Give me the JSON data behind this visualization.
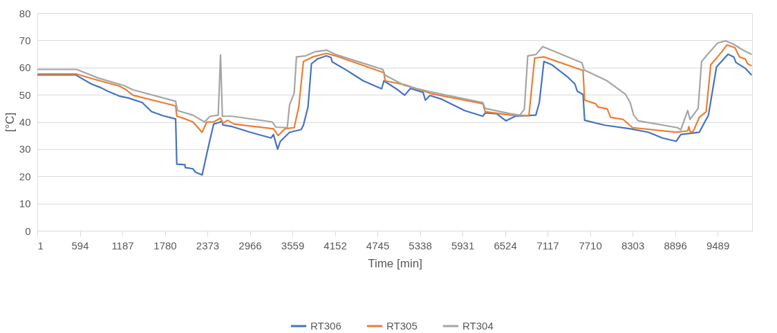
{
  "chart_data": {
    "type": "line",
    "xlabel": "Time [min]",
    "ylabel": "[°C]",
    "xlim": [
      1,
      9970
    ],
    "ylim": [
      0,
      80
    ],
    "xticks": [
      1,
      594,
      1187,
      1780,
      2373,
      2966,
      3559,
      4152,
      4745,
      5338,
      5931,
      6524,
      7117,
      7710,
      8303,
      8896,
      9489
    ],
    "yticks": [
      0,
      10,
      20,
      30,
      40,
      50,
      60,
      70,
      80
    ],
    "grid": "y",
    "legend": "bottom",
    "marker": "none",
    "line_style": "solid",
    "series": [
      {
        "name": "RT306",
        "color": "#4472c4",
        "x": [
          1,
          534,
          758,
          887,
          983,
          1144,
          1272,
          1465,
          1593,
          1754,
          1930,
          1946,
          2059,
          2065,
          2171,
          2203,
          2299,
          2396,
          2460,
          2556,
          2575,
          2588,
          2717,
          2973,
          3262,
          3294,
          3352,
          3391,
          3519,
          3680,
          3712,
          3776,
          3824,
          3904,
          4033,
          4097,
          4113,
          4322,
          4546,
          4803,
          4835,
          5028,
          5124,
          5204,
          5381,
          5413,
          5477,
          5638,
          5959,
          6215,
          6247,
          6408,
          6536,
          6665,
          6954,
          7002,
          7066,
          7178,
          7403,
          7499,
          7531,
          7612,
          7634,
          7917,
          8270,
          8526,
          8719,
          8912,
          8976,
          9104,
          9233,
          9361,
          9473,
          9634,
          9714,
          9746,
          9875,
          9964
        ],
        "values": [
          57.3,
          57.3,
          53.9,
          52.6,
          51.3,
          49.5,
          48.8,
          47.1,
          43.8,
          42.3,
          41.1,
          24.5,
          24.3,
          23.2,
          22.8,
          21.6,
          20.5,
          32,
          39.2,
          40,
          40.4,
          38.9,
          38.3,
          36.2,
          34.1,
          35.4,
          30,
          32.9,
          36.2,
          37.2,
          38.8,
          45.5,
          61.4,
          63.1,
          64.3,
          63.7,
          62.1,
          58.9,
          55.1,
          52.2,
          55.1,
          51.8,
          49.8,
          52.3,
          50.9,
          48,
          49.7,
          48.4,
          44.2,
          42.1,
          43.3,
          43,
          40.4,
          42.1,
          42.5,
          47.1,
          62.2,
          61,
          56.4,
          53.9,
          51.3,
          50.1,
          40.6,
          38.8,
          37.5,
          36.2,
          34.1,
          32.9,
          35.4,
          35.8,
          36.2,
          42.5,
          60.2,
          64.9,
          63.9,
          61.8,
          59.7,
          57.2
        ]
      },
      {
        "name": "RT305",
        "color": "#ed7d31",
        "x": [
          1,
          550,
          823,
          1144,
          1240,
          1336,
          1930,
          1946,
          2043,
          2171,
          2299,
          2364,
          2460,
          2556,
          2588,
          2653,
          2749,
          3294,
          3359,
          3455,
          3583,
          3647,
          3712,
          3840,
          4033,
          4161,
          4835,
          4851,
          5124,
          5509,
          6215,
          6247,
          6600,
          6857,
          6937,
          7066,
          7612,
          7634,
          7788,
          7820,
          7949,
          7997,
          8173,
          8302,
          8912,
          9072,
          9088,
          9110,
          9152,
          9233,
          9329,
          9393,
          9554,
          9618,
          9730,
          9794,
          9875,
          9907,
          9964
        ],
        "values": [
          57.6,
          57.6,
          55.5,
          53.2,
          51.8,
          49.8,
          45.9,
          42.1,
          41.3,
          40,
          36.2,
          40,
          40,
          41.4,
          39.6,
          40.6,
          39.2,
          37.5,
          35,
          37.5,
          37.9,
          45.5,
          62.2,
          63.9,
          65.2,
          64.3,
          58.1,
          55.1,
          53.7,
          50.3,
          46.7,
          43.8,
          42.5,
          42.3,
          63.5,
          63.9,
          58.9,
          48,
          46.7,
          45.5,
          44.8,
          41.7,
          40.9,
          37.9,
          36.2,
          36.7,
          38.3,
          36,
          36.7,
          41.7,
          43.8,
          61,
          66,
          68.3,
          67.3,
          63.9,
          63.1,
          61.4,
          60.6
        ]
      },
      {
        "name": "RT304",
        "color": "#a5a5a5",
        "x": [
          1,
          550,
          855,
          1208,
          1336,
          1930,
          1953,
          2171,
          2332,
          2412,
          2524,
          2556,
          2582,
          2717,
          3278,
          3326,
          3487,
          3519,
          3583,
          3615,
          3744,
          3872,
          4033,
          4161,
          4819,
          4851,
          5124,
          5445,
          6215,
          6247,
          6600,
          6729,
          6793,
          6841,
          6954,
          7050,
          7595,
          7628,
          7949,
          8205,
          8270,
          8318,
          8382,
          8928,
          8976,
          9072,
          9104,
          9217,
          9265,
          9361,
          9489,
          9602,
          9714,
          9843,
          9964
        ],
        "values": [
          59.3,
          59.3,
          56.1,
          53.4,
          51.8,
          47.6,
          44.2,
          42.5,
          40,
          42.1,
          42.5,
          64.6,
          42.1,
          42.1,
          40,
          38.1,
          37.9,
          46.3,
          50.5,
          63.9,
          64.3,
          65.8,
          66.4,
          64.8,
          59.3,
          57.2,
          53.4,
          51.3,
          47.1,
          45,
          43,
          42.5,
          44.6,
          64.3,
          64.8,
          67.7,
          61.8,
          59.1,
          55.1,
          50.1,
          47.1,
          42.5,
          40.4,
          37.9,
          37.1,
          44.2,
          40.9,
          45,
          62.2,
          65.2,
          69,
          69.8,
          68.5,
          66.4,
          64.8
        ]
      }
    ]
  }
}
